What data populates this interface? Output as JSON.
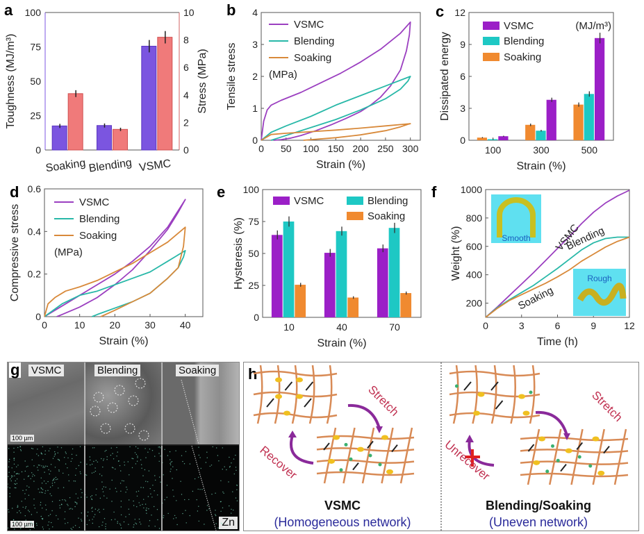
{
  "colors": {
    "vsmc": "#9b1fc7",
    "blending": "#1ec8c4",
    "soaking": "#f08a30",
    "toughness": "#7b55e0",
    "stress": "#f07a7a",
    "vsmc_line": "#9b3fc0",
    "blend_line": "#28b8a8",
    "soak_line": "#d8893a",
    "red_label": "#c03050",
    "navy": "#2a2a9a"
  },
  "chart_data": [
    {
      "id": "a",
      "type": "bar",
      "panel_label": "a",
      "categories": [
        "Soaking",
        "Blending",
        "VSMC"
      ],
      "series": [
        {
          "name": "Toughness",
          "axis": "left",
          "values": [
            17.5,
            17.8,
            75.5
          ],
          "errors": [
            1.5,
            1.5,
            4.5
          ]
        },
        {
          "name": "Stress",
          "axis": "right",
          "values": [
            4.1,
            1.5,
            8.2
          ],
          "errors": [
            0.25,
            0.12,
            0.45
          ]
        }
      ],
      "ylabel": "Toughness (MJ/m³)",
      "y2label": "Stress (MPa)",
      "ylim": [
        0,
        100
      ],
      "y2lim": [
        0,
        10
      ],
      "yticks": [
        "0",
        "25",
        "50",
        "75",
        "100"
      ],
      "y2ticks": [
        "0",
        "2",
        "4",
        "6",
        "8",
        "10"
      ]
    },
    {
      "id": "b",
      "type": "line",
      "panel_label": "b",
      "xlabel": "Strain (%)",
      "ylabel": "Tensile stress",
      "unit": "(MPa)",
      "xlim": [
        0,
        320
      ],
      "ylim": [
        0,
        4
      ],
      "xticks": [
        "0",
        "50",
        "100",
        "150",
        "200",
        "250",
        "300"
      ],
      "yticks": [
        "0",
        "1",
        "2",
        "3",
        "4"
      ],
      "series": [
        {
          "name": "VSMC",
          "x": [
            0,
            5,
            12,
            20,
            40,
            80,
            120,
            160,
            200,
            240,
            280,
            300,
            298,
            292,
            280,
            260,
            240,
            220,
            200,
            170,
            140,
            110,
            80,
            60,
            40,
            25
          ],
          "y": [
            0,
            0.6,
            0.95,
            1.1,
            1.25,
            1.5,
            1.8,
            2.1,
            2.45,
            2.85,
            3.35,
            3.7,
            3.3,
            2.8,
            2.2,
            1.7,
            1.35,
            1.1,
            0.9,
            0.68,
            0.48,
            0.3,
            0.15,
            0.07,
            0.02,
            0
          ]
        },
        {
          "name": "Blending",
          "x": [
            0,
            20,
            50,
            100,
            150,
            200,
            250,
            300,
            295,
            280,
            250,
            200,
            150,
            100,
            60,
            30,
            20
          ],
          "y": [
            0,
            0.25,
            0.45,
            0.75,
            1.1,
            1.4,
            1.7,
            2.0,
            1.85,
            1.6,
            1.3,
            0.95,
            0.65,
            0.4,
            0.2,
            0.05,
            0
          ]
        },
        {
          "name": "Soaking",
          "x": [
            0,
            20,
            50,
            100,
            150,
            200,
            250,
            300,
            295,
            280,
            250,
            200,
            150,
            100,
            85
          ],
          "y": [
            0,
            0.18,
            0.22,
            0.27,
            0.32,
            0.38,
            0.45,
            0.52,
            0.5,
            0.42,
            0.3,
            0.17,
            0.08,
            0.02,
            0
          ]
        }
      ]
    },
    {
      "id": "c",
      "type": "bar",
      "panel_label": "c",
      "xlabel": "Strain (%)",
      "ylabel": "Dissipated energy",
      "unit": "(MJ/m³)",
      "ylim": [
        0,
        12
      ],
      "categories": [
        "100",
        "300",
        "500"
      ],
      "yticks": [
        "0",
        "3",
        "6",
        "9",
        "12"
      ],
      "series": [
        {
          "name": "Soaking",
          "values": [
            0.25,
            1.45,
            3.35
          ],
          "errors": [
            0.05,
            0.12,
            0.2
          ]
        },
        {
          "name": "Blending",
          "values": [
            0.1,
            0.9,
            4.35
          ],
          "errors": [
            0.05,
            0.08,
            0.25
          ]
        },
        {
          "name": "VSMC",
          "values": [
            0.38,
            3.8,
            9.6
          ],
          "errors": [
            0.05,
            0.2,
            0.5
          ]
        }
      ]
    },
    {
      "id": "d",
      "type": "line",
      "panel_label": "d",
      "xlabel": "Strain (%)",
      "ylabel": "Compressive stress",
      "unit": "(MPa)",
      "xlim": [
        0,
        45
      ],
      "ylim": [
        0,
        0.6
      ],
      "xticks": [
        "0",
        "10",
        "20",
        "30",
        "40"
      ],
      "yticks": [
        "0",
        "0.2",
        "0.4",
        "0.6"
      ],
      "series": [
        {
          "name": "VSMC",
          "x": [
            0,
            5,
            10,
            15,
            20,
            25,
            30,
            35,
            40,
            38,
            35,
            30,
            25,
            20,
            15,
            10,
            5,
            3.5
          ],
          "y": [
            0,
            0.05,
            0.1,
            0.15,
            0.2,
            0.26,
            0.33,
            0.42,
            0.55,
            0.49,
            0.41,
            0.31,
            0.22,
            0.15,
            0.09,
            0.045,
            0.01,
            0
          ]
        },
        {
          "name": "Blending",
          "x": [
            0,
            5,
            10,
            15,
            20,
            25,
            30,
            35,
            40,
            39.5,
            38,
            35,
            30,
            25,
            20,
            15,
            13.5
          ],
          "y": [
            0,
            0.06,
            0.1,
            0.12,
            0.15,
            0.18,
            0.21,
            0.26,
            0.31,
            0.28,
            0.23,
            0.18,
            0.11,
            0.07,
            0.04,
            0.01,
            0
          ]
        },
        {
          "name": "Soaking",
          "x": [
            0,
            1,
            3,
            6,
            10,
            15,
            20,
            25,
            30,
            35,
            40,
            39.5,
            38,
            35,
            30,
            25,
            20,
            16
          ],
          "y": [
            0,
            0.06,
            0.09,
            0.12,
            0.14,
            0.17,
            0.21,
            0.25,
            0.3,
            0.35,
            0.42,
            0.33,
            0.23,
            0.18,
            0.11,
            0.07,
            0.03,
            0
          ]
        }
      ]
    },
    {
      "id": "e",
      "type": "bar",
      "panel_label": "e",
      "xlabel": "Strain (%)",
      "ylabel": "Hysteresis (%)",
      "ylim": [
        0,
        100
      ],
      "categories": [
        "10",
        "40",
        "70"
      ],
      "yticks": [
        "0",
        "25",
        "50",
        "75",
        "100"
      ],
      "series": [
        {
          "name": "VSMC",
          "values": [
            64.5,
            50.5,
            54
          ],
          "errors": [
            3.5,
            3,
            3
          ]
        },
        {
          "name": "Blending",
          "values": [
            75,
            67.5,
            70
          ],
          "errors": [
            4,
            3.5,
            4
          ]
        },
        {
          "name": "Soaking",
          "values": [
            25.5,
            15.5,
            19
          ],
          "errors": [
            1.5,
            1,
            1.2
          ]
        }
      ]
    },
    {
      "id": "f",
      "type": "line",
      "panel_label": "f",
      "xlabel": "Time (h)",
      "ylabel": "Weight (%)",
      "xlim": [
        0,
        12
      ],
      "ylim": [
        100,
        1000
      ],
      "xticks": [
        "0",
        "3",
        "6",
        "9",
        "12"
      ],
      "yticks": [
        "200",
        "400",
        "600",
        "800",
        "1000"
      ],
      "series": [
        {
          "name": "VSMC",
          "x": [
            0,
            1,
            2,
            3,
            4,
            5,
            6,
            7,
            8,
            9,
            10,
            11,
            12
          ],
          "y": [
            100,
            175,
            255,
            335,
            415,
            500,
            585,
            670,
            760,
            840,
            905,
            955,
            995
          ]
        },
        {
          "name": "Blending",
          "x": [
            0,
            1,
            2,
            3,
            4,
            5,
            6,
            7,
            8,
            9,
            10,
            11,
            12
          ],
          "y": [
            100,
            170,
            225,
            275,
            325,
            385,
            445,
            510,
            575,
            625,
            655,
            665,
            665
          ]
        },
        {
          "name": "Soaking",
          "x": [
            0,
            1,
            2,
            3,
            4,
            5,
            6,
            7,
            8,
            9,
            10,
            11,
            12
          ],
          "y": [
            100,
            165,
            220,
            260,
            300,
            340,
            385,
            435,
            495,
            545,
            595,
            635,
            665
          ]
        }
      ],
      "insets": [
        {
          "label": "Smooth",
          "position": "top-left"
        },
        {
          "label": "Rough",
          "position": "bottom-right"
        }
      ]
    }
  ],
  "legend": {
    "vsmc": "VSMC",
    "blending": "Blending",
    "soaking": "Soaking",
    "unit_mpa": "(MPa)"
  },
  "panel_g": {
    "label": "g",
    "columns": [
      "VSMC",
      "Blending",
      "Soaking"
    ],
    "scale_bar": "100 µm",
    "element": "Zn"
  },
  "panel_h": {
    "label": "h",
    "left": {
      "stretch": "Stretch",
      "recover": "Recover",
      "title": "VSMC",
      "subtitle": "(Homogeneous network)"
    },
    "right": {
      "stretch": "Stretch",
      "recover": "Unrecover",
      "title": "Blending/Soaking",
      "subtitle": "(Uneven network)"
    }
  }
}
